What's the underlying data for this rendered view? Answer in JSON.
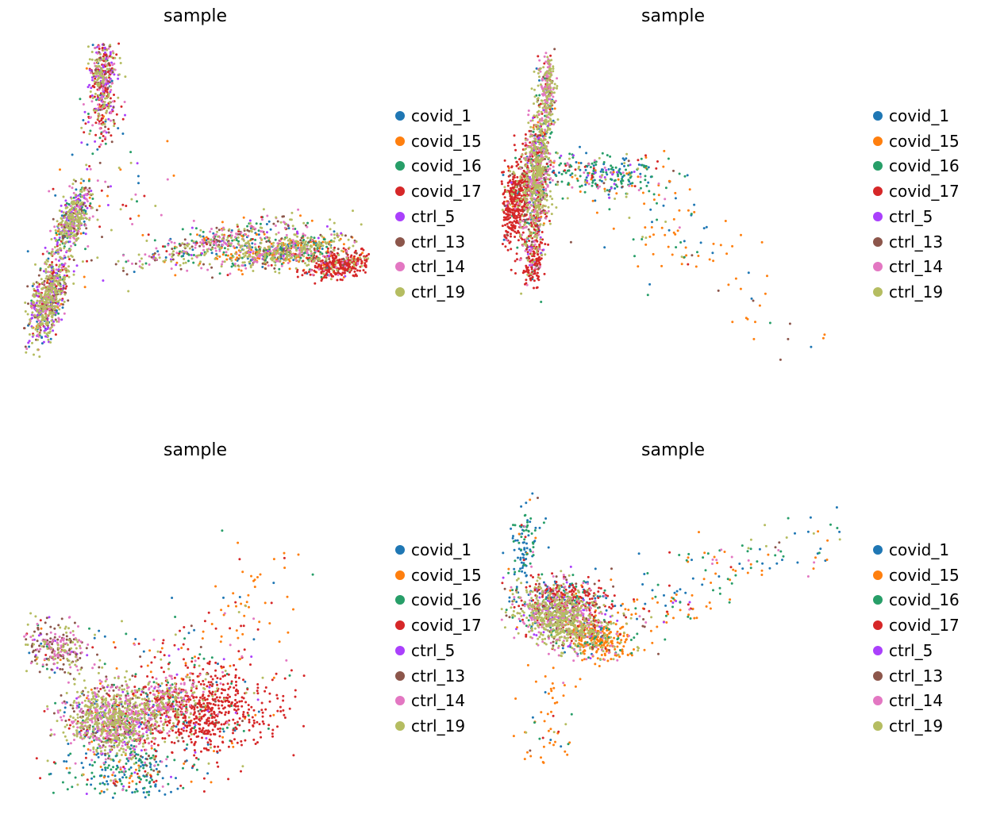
{
  "chart_data": [
    {
      "type": "scatter",
      "title": "sample",
      "shape": "tripod",
      "legend": "right",
      "xlabel": "",
      "ylabel": "",
      "axes_visible": false,
      "series": [
        {
          "name": "covid_1",
          "color": "#1f77b4"
        },
        {
          "name": "covid_15",
          "color": "#ff7f0e"
        },
        {
          "name": "covid_16",
          "color": "#279e68"
        },
        {
          "name": "covid_17",
          "color": "#d62728"
        },
        {
          "name": "ctrl_5",
          "color": "#aa40fc"
        },
        {
          "name": "ctrl_13",
          "color": "#8c564b"
        },
        {
          "name": "ctrl_14",
          "color": "#e377c2"
        },
        {
          "name": "ctrl_19",
          "color": "#b5bd61"
        }
      ]
    },
    {
      "type": "scatter",
      "title": "sample",
      "shape": "spike",
      "legend": "right",
      "xlabel": "",
      "ylabel": "",
      "axes_visible": false,
      "series": [
        {
          "name": "covid_1",
          "color": "#1f77b4"
        },
        {
          "name": "covid_15",
          "color": "#ff7f0e"
        },
        {
          "name": "covid_16",
          "color": "#279e68"
        },
        {
          "name": "covid_17",
          "color": "#d62728"
        },
        {
          "name": "ctrl_5",
          "color": "#aa40fc"
        },
        {
          "name": "ctrl_13",
          "color": "#8c564b"
        },
        {
          "name": "ctrl_14",
          "color": "#e377c2"
        },
        {
          "name": "ctrl_19",
          "color": "#b5bd61"
        }
      ]
    },
    {
      "type": "scatter",
      "title": "sample",
      "shape": "vee",
      "legend": "right",
      "xlabel": "",
      "ylabel": "",
      "axes_visible": false,
      "series": [
        {
          "name": "covid_1",
          "color": "#1f77b4"
        },
        {
          "name": "covid_15",
          "color": "#ff7f0e"
        },
        {
          "name": "covid_16",
          "color": "#279e68"
        },
        {
          "name": "covid_17",
          "color": "#d62728"
        },
        {
          "name": "ctrl_5",
          "color": "#aa40fc"
        },
        {
          "name": "ctrl_13",
          "color": "#8c564b"
        },
        {
          "name": "ctrl_14",
          "color": "#e377c2"
        },
        {
          "name": "ctrl_19",
          "color": "#b5bd61"
        }
      ]
    },
    {
      "type": "scatter",
      "title": "sample",
      "shape": "blob",
      "legend": "right",
      "xlabel": "",
      "ylabel": "",
      "axes_visible": false,
      "series": [
        {
          "name": "covid_1",
          "color": "#1f77b4"
        },
        {
          "name": "covid_15",
          "color": "#ff7f0e"
        },
        {
          "name": "covid_16",
          "color": "#279e68"
        },
        {
          "name": "covid_17",
          "color": "#d62728"
        },
        {
          "name": "ctrl_5",
          "color": "#aa40fc"
        },
        {
          "name": "ctrl_13",
          "color": "#8c564b"
        },
        {
          "name": "ctrl_14",
          "color": "#e377c2"
        },
        {
          "name": "ctrl_19",
          "color": "#b5bd61"
        }
      ]
    }
  ]
}
